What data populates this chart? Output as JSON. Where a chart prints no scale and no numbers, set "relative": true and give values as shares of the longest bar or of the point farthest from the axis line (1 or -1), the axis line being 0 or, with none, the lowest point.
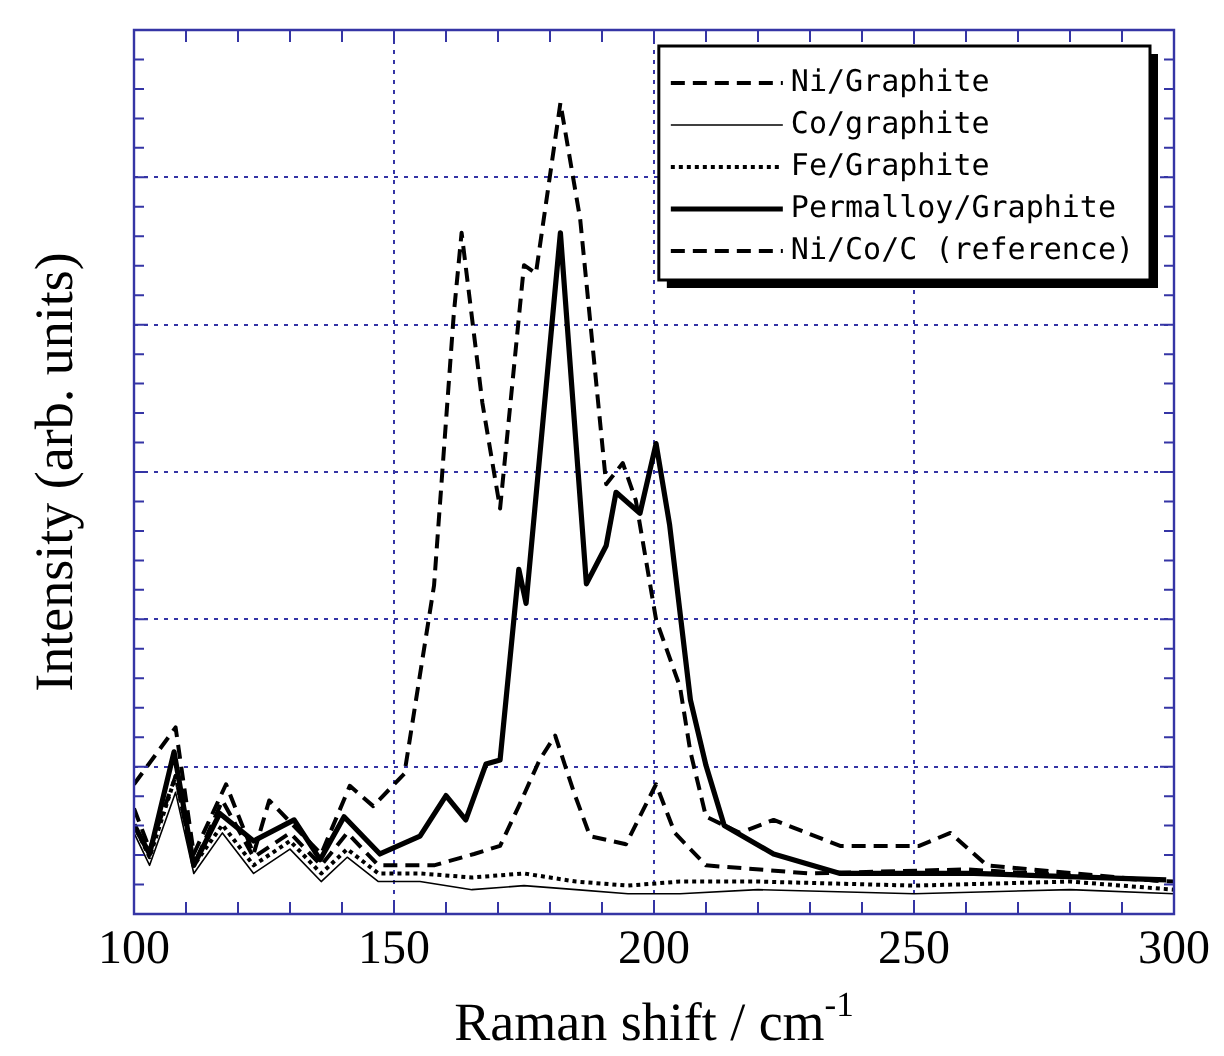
{
  "chart_data": {
    "type": "line",
    "relative": true,
    "xlabel": "Raman shift / cm$^{-1}$",
    "ylabel": "Intensity (arb. units)",
    "xlim": [
      100,
      300
    ],
    "xticks": [
      100,
      150,
      200,
      250,
      300
    ],
    "grid": true,
    "legend": "top right",
    "marker": "none",
    "series": [
      {
        "name": "Ni/Graphite",
        "color": "#000000",
        "line_style": "dashed",
        "x": [
          100,
          103,
          108,
          111.5,
          117,
          123,
          130,
          136,
          141,
          147,
          152,
          157.7,
          165.4,
          170.4,
          174,
          178,
          181,
          184.6,
          187.7,
          194.6,
          200.4,
          204,
          210,
          230,
          260,
          300
        ],
        "values": [
          0.13,
          0.08,
          0.17,
          0.06,
          0.14,
          0.07,
          0.1,
          0.06,
          0.1,
          0.06,
          0.06,
          0.06,
          0.074,
          0.084,
          0.133,
          0.19,
          0.22,
          0.15,
          0.096,
          0.086,
          0.16,
          0.1,
          0.06,
          0.05,
          0.055,
          0.04
        ]
      },
      {
        "name": "Co/graphite",
        "color": "#000000",
        "line_style": "solid",
        "x": [
          100,
          103,
          108,
          111.5,
          117,
          123,
          130,
          136,
          141,
          147,
          155,
          165,
          175,
          185,
          195,
          205,
          220,
          250,
          280,
          300
        ],
        "values": [
          0.1,
          0.06,
          0.15,
          0.05,
          0.1,
          0.05,
          0.08,
          0.04,
          0.07,
          0.04,
          0.04,
          0.03,
          0.035,
          0.03,
          0.025,
          0.025,
          0.03,
          0.025,
          0.03,
          0.025
        ]
      },
      {
        "name": "Fe/Graphite",
        "color": "#000000",
        "line_style": "dotted",
        "x": [
          100,
          103,
          108,
          111.5,
          117,
          123,
          130,
          136,
          141,
          147,
          155,
          165,
          175,
          185,
          195,
          205,
          220,
          250,
          280,
          300
        ],
        "values": [
          0.11,
          0.07,
          0.17,
          0.06,
          0.11,
          0.06,
          0.09,
          0.05,
          0.08,
          0.05,
          0.05,
          0.045,
          0.05,
          0.04,
          0.035,
          0.04,
          0.04,
          0.035,
          0.04,
          0.03
        ]
      },
      {
        "name": "Permalloy/Graphite",
        "color": "#000000",
        "line_style": "solid",
        "x": [
          100,
          103,
          107.7,
          111.5,
          116.5,
          123,
          130.8,
          135.8,
          140.4,
          147.3,
          155,
          160,
          163.8,
          167.7,
          170.4,
          174,
          175.4,
          182,
          187,
          190.8,
          192.7,
          197.3,
          200.4,
          203,
          207,
          210,
          213.5,
          223,
          235.8,
          261.5,
          298.5
        ],
        "values": [
          0.11,
          0.074,
          0.2,
          0.06,
          0.124,
          0.09,
          0.116,
          0.067,
          0.12,
          0.074,
          0.096,
          0.146,
          0.116,
          0.185,
          0.19,
          0.425,
          0.383,
          0.84,
          0.407,
          0.454,
          0.52,
          0.494,
          0.58,
          0.48,
          0.264,
          0.183,
          0.109,
          0.074,
          0.05,
          0.05,
          0.042
        ]
      },
      {
        "name": "Ni/Co/C (reference)",
        "color": "#000000",
        "line_style": "dashed",
        "x": [
          100,
          108,
          111.5,
          117.7,
          123,
          126,
          136,
          141.5,
          146,
          152,
          157.7,
          161.5,
          163,
          167,
          170.4,
          175,
          177.3,
          182,
          185.8,
          190.8,
          194,
          196.5,
          200.4,
          205,
          207,
          210,
          216.5,
          223,
          235.8,
          251,
          257,
          264,
          281,
          298.5
        ],
        "values": [
          0.16,
          0.23,
          0.074,
          0.16,
          0.074,
          0.14,
          0.074,
          0.158,
          0.133,
          0.173,
          0.405,
          0.74,
          0.84,
          0.63,
          0.5,
          0.8,
          0.79,
          1,
          0.857,
          0.53,
          0.556,
          0.51,
          0.363,
          0.28,
          0.2,
          0.12,
          0.1,
          0.116,
          0.084,
          0.084,
          0.1,
          0.06,
          0.05,
          0.04
        ]
      }
    ]
  }
}
